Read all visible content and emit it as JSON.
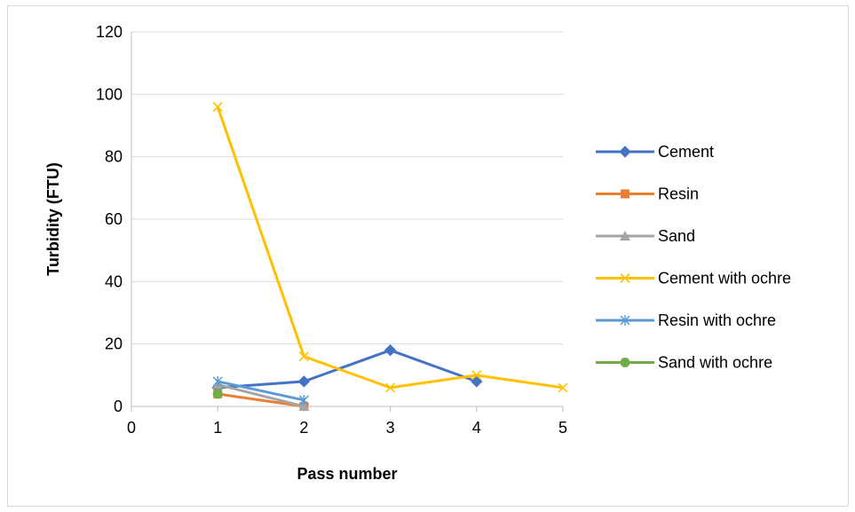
{
  "chart_data": {
    "type": "line",
    "title": "",
    "xlabel": "Pass number",
    "ylabel": "Turbidity (FTU)",
    "xlim": [
      0,
      5
    ],
    "ylim": [
      0,
      120
    ],
    "x_ticks": [
      "0",
      "1",
      "2",
      "3",
      "4",
      "5"
    ],
    "y_ticks": [
      "0",
      "20",
      "40",
      "60",
      "80",
      "100",
      "120"
    ],
    "grid": "horizontal",
    "legend_position": "right",
    "series": [
      {
        "name": "Cement",
        "color": "#4472C4",
        "marker": "diamond",
        "x": [
          1,
          2,
          3,
          4
        ],
        "y": [
          6,
          8,
          18,
          8
        ]
      },
      {
        "name": "Resin",
        "color": "#ED7D31",
        "marker": "square",
        "x": [
          1,
          2
        ],
        "y": [
          4,
          0
        ]
      },
      {
        "name": "Sand",
        "color": "#A5A5A5",
        "marker": "triangle",
        "x": [
          1,
          2
        ],
        "y": [
          7,
          0
        ]
      },
      {
        "name": "Cement with ochre",
        "color": "#FFC000",
        "marker": "x",
        "x": [
          1,
          2,
          3,
          4,
          5
        ],
        "y": [
          96,
          16,
          6,
          10,
          6
        ]
      },
      {
        "name": "Resin with ochre",
        "color": "#5B9BD5",
        "marker": "star",
        "x": [
          1,
          2
        ],
        "y": [
          8,
          2
        ]
      },
      {
        "name": "Sand with ochre",
        "color": "#70AD47",
        "marker": "circle",
        "x": [
          1
        ],
        "y": [
          4
        ]
      }
    ]
  }
}
